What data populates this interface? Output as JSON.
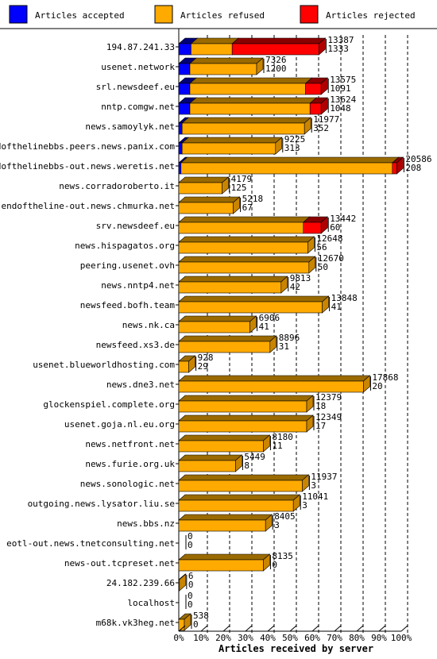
{
  "chart_data": {
    "type": "bar",
    "orientation": "horizontal",
    "stacked": true,
    "xlabel": "Articles received by server",
    "xlim": [
      0,
      100
    ],
    "x_unit": "%",
    "x_ticks": [
      "0%",
      "10%",
      "20%",
      "30%",
      "40%",
      "50%",
      "60%",
      "70%",
      "80%",
      "90%",
      "100%"
    ],
    "legend_position": "top",
    "series": [
      {
        "name": "Articles accepted",
        "color": "#0000ff"
      },
      {
        "name": "Articles refused",
        "color": "#ffaa00"
      },
      {
        "name": "Articles rejected",
        "color": "#ff0000"
      }
    ],
    "rows": [
      {
        "server": "194.87.241.33",
        "total": "13387",
        "rejected": "1333",
        "pct": [
          5.5,
          18.5,
          39
        ]
      },
      {
        "server": "usenet.network",
        "total": "7326",
        "rejected": "1200",
        "pct": [
          5,
          30,
          0
        ]
      },
      {
        "server": "srl.newsdeef.eu",
        "total": "13575",
        "rejected": "1091",
        "pct": [
          5,
          52,
          7
        ]
      },
      {
        "server": "nntp.comgw.net",
        "total": "13624",
        "rejected": "1048",
        "pct": [
          5,
          54,
          5
        ]
      },
      {
        "server": "news.samoylyk.net",
        "total": "11977",
        "rejected": "352",
        "pct": [
          1.5,
          55,
          0
        ]
      },
      {
        "server": "endofthelinebbs.peers.news.panix.com",
        "total": "9225",
        "rejected": "313",
        "pct": [
          1.5,
          42,
          0
        ]
      },
      {
        "server": "endofthelinebbs-out.news.weretis.net",
        "total": "20586",
        "rejected": "208",
        "pct": [
          1,
          95,
          2
        ]
      },
      {
        "server": "news.corradoroberto.it",
        "total": "4179",
        "rejected": "125",
        "pct": [
          0,
          19.5,
          0
        ]
      },
      {
        "server": "endoftheline-out.news.chmurka.net",
        "total": "5218",
        "rejected": "67",
        "pct": [
          0,
          24.5,
          0
        ]
      },
      {
        "server": "srv.newsdeef.eu",
        "total": "13442",
        "rejected": "60",
        "pct": [
          0,
          56,
          8
        ]
      },
      {
        "server": "news.hispagatos.org",
        "total": "12648",
        "rejected": "56",
        "pct": [
          0,
          58,
          0
        ]
      },
      {
        "server": "peering.usenet.ovh",
        "total": "12670",
        "rejected": "50",
        "pct": [
          0,
          58.5,
          0
        ]
      },
      {
        "server": "news.nntp4.net",
        "total": "9813",
        "rejected": "42",
        "pct": [
          0,
          46,
          0
        ]
      },
      {
        "server": "newsfeed.bofh.team",
        "total": "13848",
        "rejected": "41",
        "pct": [
          0,
          64.5,
          0
        ]
      },
      {
        "server": "news.nk.ca",
        "total": "6906",
        "rejected": "41",
        "pct": [
          0,
          32,
          0
        ]
      },
      {
        "server": "newsfeed.xs3.de",
        "total": "8896",
        "rejected": "31",
        "pct": [
          0,
          41,
          0
        ]
      },
      {
        "server": "usenet.blueworldhosting.com",
        "total": "928",
        "rejected": "29",
        "pct": [
          0,
          4.5,
          0
        ]
      },
      {
        "server": "news.dne3.net",
        "total": "17868",
        "rejected": "20",
        "pct": [
          0,
          83,
          0
        ]
      },
      {
        "server": "glockenspiel.complete.org",
        "total": "12379",
        "rejected": "18",
        "pct": [
          0,
          57.5,
          0
        ]
      },
      {
        "server": "usenet.goja.nl.eu.org",
        "total": "12349",
        "rejected": "17",
        "pct": [
          0,
          57.5,
          0
        ]
      },
      {
        "server": "news.netfront.net",
        "total": "8180",
        "rejected": "11",
        "pct": [
          0,
          38,
          0
        ]
      },
      {
        "server": "news.furie.org.uk",
        "total": "5449",
        "rejected": "8",
        "pct": [
          0,
          25.5,
          0
        ]
      },
      {
        "server": "news.sonologic.net",
        "total": "11937",
        "rejected": "3",
        "pct": [
          0,
          55.5,
          0
        ]
      },
      {
        "server": "outgoing.news.lysator.liu.se",
        "total": "11041",
        "rejected": "3",
        "pct": [
          0,
          51.5,
          0
        ]
      },
      {
        "server": "news.bbs.nz",
        "total": "8405",
        "rejected": "3",
        "pct": [
          0,
          39,
          0
        ]
      },
      {
        "server": "eotl-out.news.tnetconsulting.net",
        "total": "0",
        "rejected": "0",
        "pct": [
          0,
          0,
          0
        ]
      },
      {
        "server": "news-out.tcpreset.net",
        "total": "8135",
        "rejected": "0",
        "pct": [
          0,
          38,
          0
        ]
      },
      {
        "server": "24.182.239.66",
        "total": "6",
        "rejected": "0",
        "pct": [
          0,
          0.3,
          0
        ]
      },
      {
        "server": "localhost",
        "total": "0",
        "rejected": "0",
        "pct": [
          0,
          0,
          0
        ]
      },
      {
        "server": "m68k.vk3heg.net",
        "total": "538",
        "rejected": "0",
        "pct": [
          0,
          2.5,
          0
        ]
      }
    ]
  }
}
